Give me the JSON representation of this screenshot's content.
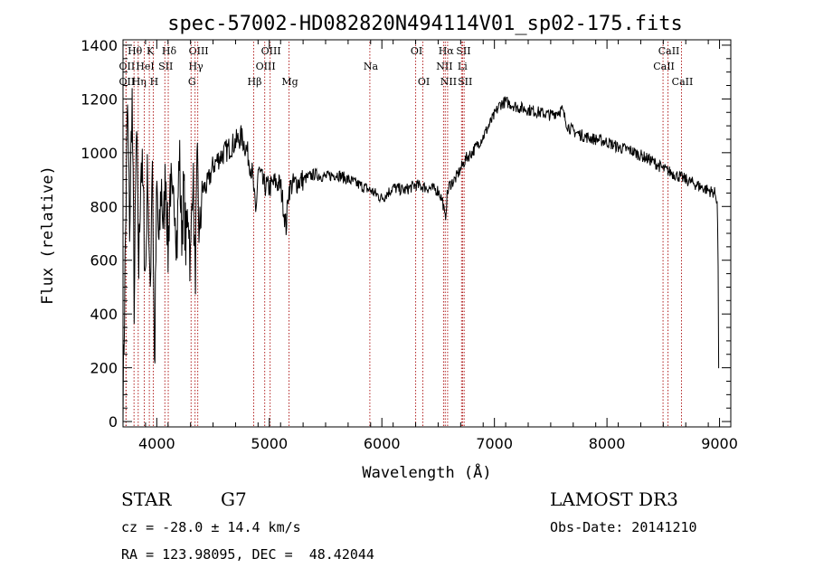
{
  "chart_data": {
    "type": "line",
    "title": "spec-57002-HD082820N494114V01_sp02-175.fits",
    "xlabel": "Wavelength (Å)",
    "ylabel": "Flux (relative)",
    "xlim": [
      3700,
      9100
    ],
    "ylim": [
      -20,
      1420
    ],
    "x_ticks": [
      4000,
      5000,
      6000,
      7000,
      8000,
      9000
    ],
    "y_ticks": [
      0,
      200,
      400,
      600,
      800,
      1000,
      1200,
      1400
    ],
    "series": [
      {
        "name": "spectrum",
        "x": [
          3700,
          3720,
          3740,
          3760,
          3780,
          3800,
          3820,
          3840,
          3860,
          3880,
          3900,
          3920,
          3940,
          3960,
          3980,
          4000,
          4020,
          4040,
          4060,
          4080,
          4100,
          4120,
          4140,
          4160,
          4180,
          4200,
          4220,
          4240,
          4260,
          4280,
          4300,
          4320,
          4340,
          4360,
          4380,
          4400,
          4450,
          4500,
          4550,
          4600,
          4650,
          4700,
          4750,
          4800,
          4850,
          4880,
          4900,
          4950,
          5000,
          5050,
          5100,
          5150,
          5170,
          5200,
          5300,
          5400,
          5500,
          5600,
          5700,
          5800,
          5900,
          6000,
          6100,
          6200,
          6300,
          6400,
          6500,
          6540,
          6563,
          6580,
          6600,
          6650,
          6700,
          6750,
          6800,
          6850,
          6900,
          6950,
          7000,
          7050,
          7100,
          7150,
          7200,
          7300,
          7400,
          7500,
          7600,
          7650,
          7700,
          7800,
          7900,
          8000,
          8100,
          8200,
          8300,
          8400,
          8500,
          8600,
          8700,
          8800,
          8900,
          8960,
          8980,
          9000
        ],
        "values": [
          50,
          620,
          1180,
          700,
          1250,
          420,
          1100,
          560,
          1000,
          820,
          520,
          980,
          400,
          1050,
          160,
          880,
          620,
          900,
          700,
          960,
          620,
          920,
          740,
          860,
          650,
          1010,
          700,
          860,
          640,
          820,
          560,
          980,
          520,
          940,
          660,
          860,
          880,
          950,
          980,
          1000,
          1020,
          1040,
          1060,
          1010,
          920,
          760,
          940,
          880,
          870,
          890,
          880,
          720,
          860,
          880,
          900,
          920,
          910,
          920,
          900,
          880,
          860,
          830,
          870,
          860,
          880,
          870,
          860,
          820,
          750,
          840,
          880,
          900,
          940,
          980,
          1000,
          1030,
          1060,
          1100,
          1140,
          1180,
          1190,
          1180,
          1170,
          1160,
          1150,
          1140,
          1160,
          1100,
          1080,
          1060,
          1050,
          1040,
          1020,
          1010,
          990,
          970,
          940,
          920,
          900,
          880,
          860,
          850,
          820,
          200
        ]
      }
    ],
    "lines": [
      {
        "label": "Hθ",
        "x": 3798,
        "row": 0
      },
      {
        "label": "OII",
        "x": 3727,
        "row": 1
      },
      {
        "label": "OII",
        "x": 3727,
        "row": 2
      },
      {
        "label": "Hη",
        "x": 3835,
        "row": 2
      },
      {
        "label": "K",
        "x": 3934,
        "row": 0
      },
      {
        "label": "HeI",
        "x": 3889,
        "row": 1
      },
      {
        "label": "H",
        "x": 3969,
        "row": 2
      },
      {
        "label": "SII",
        "x": 4072,
        "row": 1
      },
      {
        "label": "Hδ",
        "x": 4102,
        "row": 0
      },
      {
        "label": "OIII",
        "x": 4364,
        "row": 0
      },
      {
        "label": "Hγ",
        "x": 4340,
        "row": 1
      },
      {
        "label": "G",
        "x": 4305,
        "row": 2
      },
      {
        "label": "Hβ",
        "x": 4861,
        "row": 2
      },
      {
        "label": "OIII",
        "x": 5007,
        "row": 0
      },
      {
        "label": "OIII",
        "x": 4959,
        "row": 1
      },
      {
        "label": "Mg",
        "x": 5175,
        "row": 2
      },
      {
        "label": "Na",
        "x": 5893,
        "row": 1
      },
      {
        "label": "OI",
        "x": 6300,
        "row": 0
      },
      {
        "label": "OI",
        "x": 6364,
        "row": 2
      },
      {
        "label": "Hα",
        "x": 6563,
        "row": 0
      },
      {
        "label": "SII",
        "x": 6717,
        "row": 0
      },
      {
        "label": "NII",
        "x": 6548,
        "row": 1
      },
      {
        "label": "Li",
        "x": 6708,
        "row": 1
      },
      {
        "label": "NII",
        "x": 6584,
        "row": 2
      },
      {
        "label": "SII",
        "x": 6731,
        "row": 2
      },
      {
        "label": "CaII",
        "x": 8542,
        "row": 0
      },
      {
        "label": "CaII",
        "x": 8498,
        "row": 1
      },
      {
        "label": "CaII",
        "x": 8662,
        "row": 2
      }
    ]
  },
  "info": {
    "class": "STAR",
    "subclass": "G7",
    "survey": "LAMOST DR3",
    "cz": "cz = -28.0 ± 14.4 km/s",
    "obs_date": "Obs-Date: 20141210",
    "coords": "RA = 123.98095, DEC =  48.42044"
  },
  "colors": {
    "spectrum": "#000000",
    "line_marker": "#b22222"
  }
}
